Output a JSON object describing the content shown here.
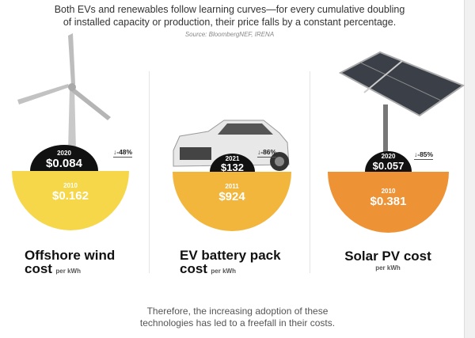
{
  "header": {
    "line1": "Both EVs and renewables follow learning curves—for every cumulative doubling",
    "line2": "of installed capacity or production, their price falls by a constant percentage.",
    "source": "Source: BloombergNEF, IRENA"
  },
  "panels": [
    {
      "title1": "Offshore wind",
      "title2": "cost",
      "unit": "per kWh",
      "new_year": "2020",
      "new_value": "$0.084",
      "old_year": "2010",
      "old_value": "$0.162",
      "change": "↓-48%",
      "color": "#f6d74a",
      "image": "wind-turbine"
    },
    {
      "title1": "EV battery pack",
      "title2": "cost",
      "unit": "per kWh",
      "new_year": "2021",
      "new_value": "$132",
      "old_year": "2011",
      "old_value": "$924",
      "change": "↓-86%",
      "color": "#f2b63c",
      "image": "car"
    },
    {
      "title1": "Solar PV cost",
      "unit": "per kWh",
      "new_year": "2020",
      "new_value": "$0.057",
      "old_year": "2010",
      "old_value": "$0.381",
      "change": "↓-85%",
      "color": "#ee9236",
      "image": "solar-panel"
    }
  ],
  "footer": {
    "line1": "Therefore, the increasing adoption of these",
    "line2": "technologies has led to a freefall in their costs."
  }
}
